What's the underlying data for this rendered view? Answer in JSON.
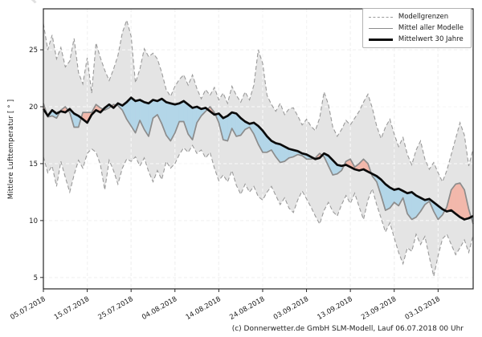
{
  "caption": "(c) Donnerwetter.de GmbH SLM-Modell, Lauf 06.07.2018 00 Uhr",
  "legend": {
    "items": [
      {
        "label": "Modellgrenzen",
        "style": "dashed-gray"
      },
      {
        "label": "Mittel aller Modelle",
        "style": "solid-gray"
      },
      {
        "label": "Mittelwert 30 Jahre",
        "style": "solid-black-thick"
      }
    ]
  },
  "colors": {
    "band_fill": "#e4e4e4",
    "band_edge": "#9a9a9a",
    "model_mean_line": "#8c8c8c",
    "mean30_line": "#0a0a0a",
    "fill_above": "#f2b8ab",
    "fill_below": "#b3d6e8",
    "grid": "#cfcfcf",
    "axis": "#262626"
  },
  "chart_data": {
    "type": "line",
    "title": "",
    "xlabel": "",
    "ylabel": "Mittlere Lufttemperatur [ ° ]",
    "ylim": [
      4,
      28.6
    ],
    "yticks": [
      5,
      10,
      15,
      20,
      25
    ],
    "xtick_labels": [
      "05.07.2018",
      "15.07.2018",
      "25.07.2018",
      "04.08.2018",
      "14.08.2018",
      "24.08.2018",
      "03.09.2018",
      "13.09.2018",
      "23.09.2018",
      "03.10.2018"
    ],
    "xtick_days": [
      0,
      10,
      20,
      30,
      40,
      50,
      60,
      70,
      80,
      90
    ],
    "x_days_total": 98,
    "x_start_date": "05.07.2018",
    "grid": true,
    "legend_position": "upper right",
    "series": [
      {
        "name": "Modellgrenzen obere Grenze",
        "style": "dashed",
        "values": [
          27.3,
          25.0,
          26.3,
          24.2,
          25.2,
          23.5,
          24.0,
          26.0,
          23.0,
          22.0,
          24.3,
          21.2,
          25.6,
          24.3,
          23.2,
          22.3,
          23.3,
          24.5,
          26.5,
          27.6,
          26.2,
          22.1,
          23.3,
          25.1,
          24.4,
          24.7,
          24.2,
          23.0,
          21.5,
          20.9,
          21.8,
          22.4,
          22.8,
          21.9,
          22.8,
          21.6,
          20.7,
          21.5,
          21.0,
          21.7,
          20.6,
          21.2,
          20.3,
          21.8,
          21.0,
          20.4,
          21.3,
          20.6,
          21.9,
          25.0,
          23.8,
          21.0,
          20.2,
          19.6,
          20.3,
          19.3,
          19.8,
          19.9,
          19.2,
          18.4,
          18.9,
          18.3,
          17.9,
          19.0,
          21.3,
          20.2,
          18.2,
          17.4,
          18.0,
          18.8,
          18.4,
          19.0,
          19.6,
          20.4,
          21.1,
          19.9,
          18.3,
          17.2,
          18.2,
          18.9,
          17.6,
          16.5,
          17.3,
          15.8,
          14.9,
          16.2,
          17.0,
          15.4,
          14.5,
          15.1,
          14.2,
          13.4,
          14.4,
          15.8,
          17.2,
          18.6,
          17.5,
          14.8,
          16.3
        ]
      },
      {
        "name": "Modellgrenzen untere Grenze",
        "style": "dashed",
        "values": [
          15.6,
          14.2,
          14.8,
          13.0,
          15.2,
          13.8,
          12.5,
          14.0,
          15.3,
          14.6,
          15.9,
          16.3,
          16.0,
          14.9,
          12.7,
          15.3,
          14.4,
          13.2,
          14.6,
          15.4,
          15.2,
          15.6,
          14.8,
          15.5,
          14.3,
          13.4,
          14.4,
          13.6,
          15.2,
          14.6,
          15.0,
          15.8,
          16.4,
          16.0,
          16.6,
          15.9,
          16.2,
          15.5,
          16.0,
          14.6,
          13.5,
          14.0,
          13.4,
          14.4,
          13.1,
          12.3,
          13.2,
          12.5,
          13.0,
          12.1,
          11.8,
          12.5,
          13.0,
          12.2,
          11.4,
          12.0,
          11.1,
          10.7,
          11.8,
          12.6,
          11.9,
          11.2,
          10.4,
          9.7,
          10.9,
          11.6,
          10.8,
          10.4,
          11.4,
          12.2,
          11.5,
          12.4,
          11.2,
          10.1,
          11.8,
          12.8,
          11.4,
          10.2,
          9.0,
          9.8,
          8.5,
          7.2,
          6.2,
          7.6,
          7.3,
          8.8,
          7.9,
          8.6,
          6.8,
          5.1,
          6.9,
          8.4,
          8.8,
          7.9,
          7.0,
          7.6,
          8.3,
          7.2,
          8.7
        ]
      },
      {
        "name": "Mittel aller Modelle",
        "style": "solid-gray",
        "values": [
          20.3,
          19.1,
          19.2,
          19.0,
          19.7,
          20.0,
          19.5,
          18.2,
          18.2,
          19.5,
          19.5,
          19.5,
          20.2,
          19.9,
          19.7,
          19.9,
          20.2,
          20.1,
          19.7,
          18.9,
          18.3,
          17.7,
          18.8,
          18.0,
          17.4,
          19.0,
          19.3,
          18.5,
          17.5,
          17.0,
          17.7,
          18.7,
          18.7,
          17.6,
          17.1,
          18.6,
          19.2,
          19.6,
          20.0,
          19.5,
          18.6,
          17.1,
          17.0,
          18.1,
          17.4,
          17.5,
          18.0,
          18.2,
          17.6,
          16.7,
          16.0,
          16.0,
          16.2,
          15.6,
          15.1,
          15.2,
          15.5,
          15.6,
          15.8,
          15.7,
          15.4,
          15.4,
          15.5,
          15.9,
          15.6,
          14.8,
          14.0,
          14.1,
          14.4,
          15.2,
          15.4,
          14.7,
          15.0,
          15.4,
          15.0,
          13.9,
          13.4,
          12.2,
          10.9,
          11.1,
          11.6,
          11.3,
          12.0,
          10.6,
          10.1,
          10.3,
          10.8,
          11.4,
          11.7,
          10.8,
          10.1,
          10.5,
          11.2,
          12.7,
          13.2,
          13.3,
          12.7,
          11.0,
          9.7
        ]
      },
      {
        "name": "Mittelwert 30 Jahre",
        "style": "solid-black-thick",
        "values": [
          19.8,
          19.2,
          19.7,
          19.4,
          19.6,
          19.5,
          19.8,
          19.4,
          19.2,
          18.9,
          18.6,
          19.3,
          19.7,
          19.5,
          19.9,
          20.2,
          19.9,
          20.3,
          20.1,
          20.4,
          20.8,
          20.5,
          20.6,
          20.4,
          20.3,
          20.6,
          20.5,
          20.7,
          20.4,
          20.3,
          20.2,
          20.3,
          20.5,
          20.2,
          19.9,
          20.0,
          19.8,
          19.9,
          19.6,
          19.3,
          19.4,
          19.0,
          19.2,
          19.5,
          19.4,
          19.0,
          18.7,
          18.5,
          18.6,
          18.3,
          17.9,
          17.4,
          17.0,
          16.8,
          16.7,
          16.5,
          16.3,
          16.2,
          16.1,
          15.9,
          15.8,
          15.6,
          15.4,
          15.5,
          15.9,
          15.7,
          15.3,
          14.9,
          14.8,
          14.9,
          14.7,
          14.5,
          14.4,
          14.5,
          14.3,
          14.1,
          13.9,
          13.6,
          13.2,
          12.9,
          12.7,
          12.8,
          12.6,
          12.4,
          12.5,
          12.2,
          12.0,
          11.8,
          11.9,
          11.6,
          11.3,
          11.0,
          10.8,
          10.9,
          10.6,
          10.3,
          10.1,
          10.2,
          10.4
        ]
      }
    ],
    "fills": [
      {
        "name": "Modellgrenzen Band",
        "between": [
          "Modellgrenzen obere Grenze",
          "Modellgrenzen untere Grenze"
        ],
        "color": "#e4e4e4"
      },
      {
        "name": "Modellmittel ueber Klimamittel",
        "between": [
          "Mittel aller Modelle",
          "Mittelwert 30 Jahre"
        ],
        "where": "above",
        "color": "#f2b8ab"
      },
      {
        "name": "Modellmittel unter Klimamittel",
        "between": [
          "Mittel aller Modelle",
          "Mittelwert 30 Jahre"
        ],
        "where": "below",
        "color": "#b3d6e8"
      }
    ]
  }
}
